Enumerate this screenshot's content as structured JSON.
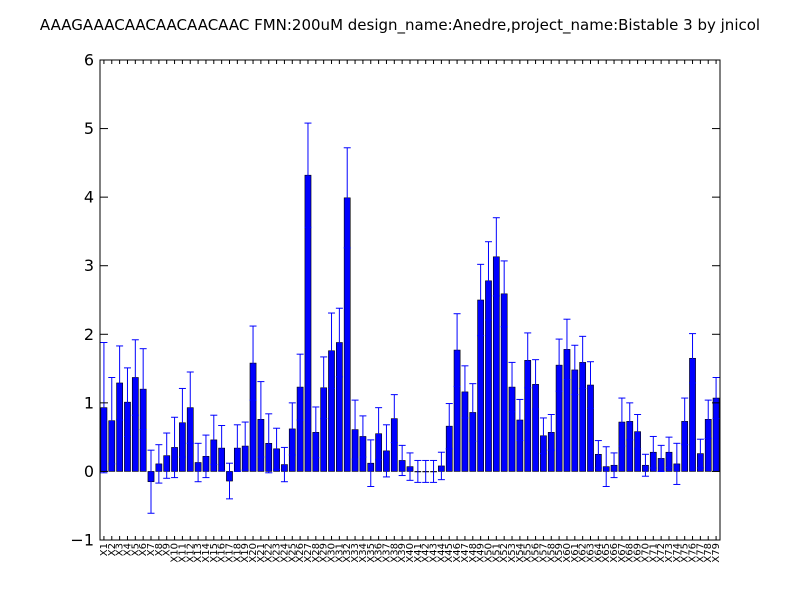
{
  "chart_data": {
    "type": "bar",
    "title": "AAAGAAACAACAACAACAAC  FMN:200uM  design_name:Anedre,project_name:Bistable 3 by jnicol",
    "xlabel": "",
    "ylabel": "",
    "ylim": [
      -1,
      6
    ],
    "yticks": [
      "6",
      "5",
      "4",
      "3",
      "2",
      "1",
      "0",
      "−1"
    ],
    "grid": false,
    "bar_color": "#0000ff",
    "error_color": "#0000ff",
    "categories": [
      "X1",
      "X2",
      "X3",
      "X4",
      "X5",
      "X6",
      "X7",
      "X8",
      "X9",
      "X10",
      "X11",
      "X12",
      "X13",
      "X14",
      "X15",
      "X16",
      "X17",
      "X18",
      "X19",
      "X20",
      "X21",
      "X22",
      "X23",
      "X24",
      "X25",
      "X26",
      "X27",
      "X28",
      "X29",
      "X30",
      "X31",
      "X32",
      "X33",
      "X34",
      "X35",
      "X36",
      "X37",
      "X38",
      "X39",
      "X40",
      "X41",
      "X42",
      "X43",
      "X44",
      "X45",
      "X46",
      "X47",
      "X48",
      "X49",
      "X50",
      "X51",
      "X52",
      "X53",
      "X54",
      "X55",
      "X56",
      "X57",
      "X58",
      "X59",
      "X60",
      "X61",
      "X62",
      "X63",
      "X64",
      "X65",
      "X66",
      "X67",
      "X68",
      "X69",
      "X70",
      "X71",
      "X72",
      "X73",
      "X74",
      "X75",
      "X76",
      "X77",
      "X78",
      "X79"
    ],
    "values": [
      0.93,
      0.74,
      1.29,
      1.01,
      1.37,
      1.2,
      -0.15,
      0.11,
      0.23,
      0.35,
      0.71,
      0.93,
      0.13,
      0.22,
      0.46,
      0.34,
      -0.14,
      0.34,
      0.37,
      1.58,
      0.76,
      0.41,
      0.33,
      0.1,
      0.62,
      1.23,
      4.32,
      0.57,
      1.22,
      1.76,
      1.88,
      3.99,
      0.61,
      0.51,
      0.12,
      0.55,
      0.3,
      0.77,
      0.16,
      0.07,
      0.0,
      0.0,
      0.0,
      0.08,
      0.66,
      1.77,
      1.16,
      0.86,
      2.5,
      2.78,
      3.13,
      2.59,
      1.23,
      0.75,
      1.62,
      1.27,
      0.52,
      0.57,
      1.55,
      1.78,
      1.48,
      1.59,
      1.26,
      0.25,
      0.07,
      0.09,
      0.72,
      0.73,
      0.58,
      0.09,
      0.28,
      0.19,
      0.28,
      0.11,
      0.73,
      1.65,
      0.26,
      0.76,
      1.07
    ],
    "errors": [
      0.95,
      0.63,
      0.54,
      0.5,
      0.55,
      0.59,
      0.46,
      0.28,
      0.33,
      0.44,
      0.5,
      0.52,
      0.28,
      0.31,
      0.36,
      0.33,
      0.26,
      0.34,
      0.35,
      0.54,
      0.55,
      0.43,
      0.3,
      0.25,
      0.38,
      0.48,
      0.76,
      0.37,
      0.45,
      0.55,
      0.5,
      0.73,
      0.43,
      0.3,
      0.34,
      0.38,
      0.38,
      0.35,
      0.22,
      0.2,
      0.16,
      0.16,
      0.16,
      0.2,
      0.33,
      0.53,
      0.38,
      0.42,
      0.52,
      0.57,
      0.57,
      0.48,
      0.36,
      0.3,
      0.4,
      0.36,
      0.26,
      0.26,
      0.38,
      0.44,
      0.36,
      0.38,
      0.34,
      0.2,
      0.29,
      0.18,
      0.35,
      0.27,
      0.25,
      0.16,
      0.23,
      0.19,
      0.22,
      0.3,
      0.34,
      0.36,
      0.21,
      0.28,
      0.3
    ]
  }
}
